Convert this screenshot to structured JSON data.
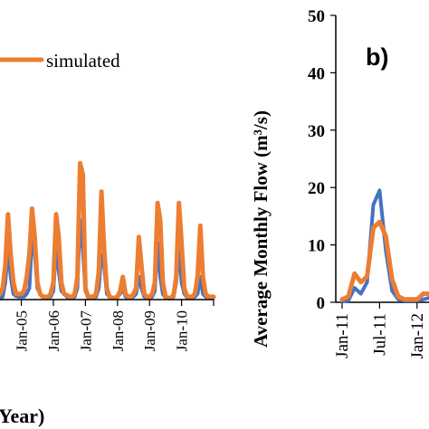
{
  "chart_data": [
    {
      "panel": "a",
      "type": "line",
      "xlabel": "Year)",
      "ylabel": "",
      "x_tick_labels": [
        "Jan-05",
        "Jan-06",
        "Jan-07",
        "Jan-08",
        "Jan-09",
        "Jan-10"
      ],
      "xlim": [
        -8,
        72
      ],
      "ylim": [
        0,
        50
      ],
      "grid": false,
      "legend": {
        "placement": "top",
        "entries": [
          "simulated"
        ]
      },
      "series": [
        {
          "name": "",
          "color": "#4472C4",
          "x": [
            -8,
            -7,
            -6,
            -5,
            -4,
            -3,
            -2,
            -1,
            0,
            1,
            2,
            3,
            4,
            5,
            6,
            7,
            8,
            9,
            10,
            11,
            12,
            13,
            14,
            15,
            16,
            17,
            18,
            19,
            20,
            21,
            22,
            23,
            24,
            25,
            26,
            27,
            28,
            29,
            30,
            31,
            32,
            33,
            34,
            35,
            36,
            37,
            38,
            39,
            40,
            41,
            42,
            43,
            44,
            45,
            46,
            47,
            48,
            49,
            50,
            51,
            52,
            53,
            54,
            55,
            56,
            57,
            58,
            59,
            60,
            61,
            62,
            63,
            64,
            65,
            66,
            67,
            68,
            69,
            70,
            71,
            72
          ],
          "y": [
            0.2,
            0.5,
            3,
            9,
            4,
            1,
            0.6,
            0.5,
            0.5,
            0.5,
            1,
            2,
            11,
            8,
            2,
            1,
            0.6,
            0.3,
            0.3,
            0.5,
            1.5,
            9,
            5,
            1.5,
            1,
            0.5,
            0.3,
            0.3,
            0.5,
            2,
            14,
            9,
            1.5,
            0.4,
            0.3,
            0.3,
            0.5,
            2,
            8,
            6,
            1,
            0.5,
            0.3,
            0.3,
            0.5,
            1,
            2,
            0.5,
            0.3,
            0.3,
            0.5,
            1,
            4,
            2,
            0.5,
            0.3,
            0.3,
            0.5,
            1.5,
            10,
            4,
            1,
            0.3,
            0.2,
            0.2,
            0.5,
            3,
            9,
            3,
            1,
            0.4,
            0.3,
            0.3,
            0.5,
            1,
            4,
            1,
            0.5,
            0.3,
            0.3,
            0.3
          ]
        },
        {
          "name": "simulated",
          "color": "#ED7D31",
          "x": [
            -8,
            -7,
            -6,
            -5,
            -4,
            -3,
            -2,
            -1,
            0,
            1,
            2,
            3,
            4,
            5,
            6,
            7,
            8,
            9,
            10,
            11,
            12,
            13,
            14,
            15,
            16,
            17,
            18,
            19,
            20,
            21,
            22,
            23,
            24,
            25,
            26,
            27,
            28,
            29,
            30,
            31,
            32,
            33,
            34,
            35,
            36,
            37,
            38,
            39,
            40,
            41,
            42,
            43,
            44,
            45,
            46,
            47,
            48,
            49,
            50,
            51,
            52,
            53,
            54,
            55,
            56,
            57,
            58,
            59,
            60,
            61,
            62,
            63,
            64,
            65,
            66,
            67,
            68,
            69,
            70,
            71,
            72
          ],
          "y": [
            1,
            2,
            6,
            15,
            8,
            3,
            1,
            1,
            1,
            1.5,
            4,
            8,
            16,
            11,
            3,
            1,
            0.5,
            0.5,
            0.5,
            1,
            3,
            15,
            11,
            3,
            1,
            0.8,
            0.5,
            0.5,
            1,
            4,
            24,
            22,
            2,
            0.5,
            0.5,
            0.5,
            1,
            5,
            19,
            9,
            2,
            0.5,
            0.3,
            0.3,
            0.5,
            1.5,
            4,
            1,
            0.5,
            0.5,
            1,
            2,
            11,
            6,
            1,
            0.5,
            0.5,
            1,
            3,
            17,
            14,
            3,
            0.5,
            0.3,
            0.3,
            0.8,
            4,
            17,
            10,
            2,
            0.6,
            0.5,
            0.5,
            1,
            4,
            13,
            4,
            1,
            0.5,
            0.5,
            0.5
          ]
        }
      ]
    },
    {
      "panel": "b",
      "type": "line",
      "panel_label": "b)",
      "ylabel": "Average Monthly Flow (m³/s)",
      "y_ticks": [
        0,
        10,
        20,
        30,
        40,
        50
      ],
      "x_tick_labels": [
        "Jan-11",
        "Jul-11",
        "Jan-12"
      ],
      "xlim": [
        0,
        15
      ],
      "ylim": [
        0,
        50
      ],
      "grid": false,
      "series": [
        {
          "name": "",
          "color": "#4472C4",
          "x": [
            0,
            1,
            2,
            3,
            4,
            5,
            6,
            7,
            8,
            9,
            10,
            11,
            12,
            13,
            14,
            15
          ],
          "y": [
            0.2,
            0.3,
            2.5,
            1.5,
            3.5,
            17,
            19.5,
            9,
            2,
            0.5,
            0.3,
            0.3,
            0.3,
            0.5,
            0.8,
            1
          ]
        },
        {
          "name": "",
          "color": "#ED7D31",
          "x": [
            0,
            1,
            2,
            3,
            4,
            5,
            6,
            7,
            8,
            9,
            10,
            11,
            12,
            13,
            14,
            15
          ],
          "y": [
            0.5,
            1,
            5,
            3.5,
            4.5,
            13,
            14,
            11.5,
            4,
            1,
            0.5,
            0.5,
            0.5,
            1.5,
            1.5,
            1.2
          ]
        }
      ]
    }
  ]
}
